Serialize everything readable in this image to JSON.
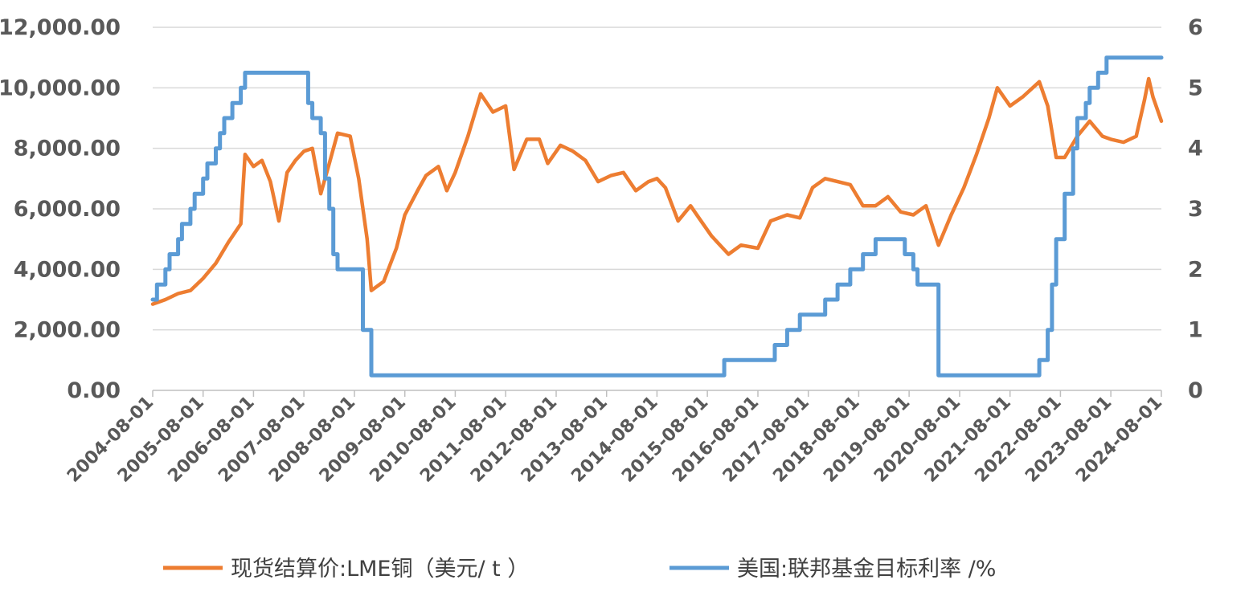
{
  "chart_data": {
    "type": "line",
    "title": "",
    "xlabel": "",
    "ylabel": "",
    "y_left_lim": [
      0,
      12000
    ],
    "y_right_lim": [
      0,
      6
    ],
    "y_left_ticks": [
      "0.00",
      "2,000.00",
      "4,000.00",
      "6,000.00",
      "8,000.00",
      "10,000.00",
      "12,000.00"
    ],
    "y_right_ticks": [
      "0",
      "1",
      "2",
      "3",
      "4",
      "5",
      "6"
    ],
    "x_ticks": [
      "2004-08-01",
      "2005-08-01",
      "2006-08-01",
      "2007-08-01",
      "2008-08-01",
      "2009-08-01",
      "2010-08-01",
      "2011-08-01",
      "2012-08-01",
      "2013-08-01",
      "2014-08-01",
      "2015-08-01",
      "2016-08-01",
      "2017-08-01",
      "2018-08-01",
      "2019-08-01",
      "2020-08-01",
      "2021-08-01",
      "2022-08-01",
      "2023-08-01",
      "2024-08-01"
    ],
    "x_range": [
      "2004-08-01",
      "2024-08-01"
    ],
    "grid": true,
    "legend_position": "bottom",
    "series": [
      {
        "name": "现货结算价:LME铜（美元/ t ）",
        "axis": "left",
        "color": "#ED7D31",
        "points": [
          [
            "2004-08-01",
            2850
          ],
          [
            "2004-11-01",
            3000
          ],
          [
            "2005-02-01",
            3200
          ],
          [
            "2005-05-01",
            3300
          ],
          [
            "2005-08-01",
            3700
          ],
          [
            "2005-11-01",
            4200
          ],
          [
            "2006-02-01",
            4900
          ],
          [
            "2006-05-01",
            5500
          ],
          [
            "2006-06-01",
            7800
          ],
          [
            "2006-08-01",
            7400
          ],
          [
            "2006-10-01",
            7600
          ],
          [
            "2006-12-01",
            6900
          ],
          [
            "2007-02-01",
            5600
          ],
          [
            "2007-04-01",
            7200
          ],
          [
            "2007-06-01",
            7600
          ],
          [
            "2007-08-01",
            7900
          ],
          [
            "2007-10-01",
            8000
          ],
          [
            "2007-12-01",
            6500
          ],
          [
            "2008-02-01",
            7500
          ],
          [
            "2008-04-01",
            8500
          ],
          [
            "2008-07-01",
            8400
          ],
          [
            "2008-09-01",
            7000
          ],
          [
            "2008-11-01",
            5000
          ],
          [
            "2008-12-01",
            3300
          ],
          [
            "2009-03-01",
            3600
          ],
          [
            "2009-06-01",
            4700
          ],
          [
            "2009-08-01",
            5800
          ],
          [
            "2009-11-01",
            6600
          ],
          [
            "2010-01-01",
            7100
          ],
          [
            "2010-04-01",
            7400
          ],
          [
            "2010-06-01",
            6600
          ],
          [
            "2010-08-01",
            7200
          ],
          [
            "2010-11-01",
            8400
          ],
          [
            "2011-02-01",
            9800
          ],
          [
            "2011-05-01",
            9200
          ],
          [
            "2011-08-01",
            9400
          ],
          [
            "2011-10-01",
            7300
          ],
          [
            "2012-01-01",
            8300
          ],
          [
            "2012-04-01",
            8300
          ],
          [
            "2012-06-01",
            7500
          ],
          [
            "2012-09-01",
            8100
          ],
          [
            "2012-12-01",
            7900
          ],
          [
            "2013-03-01",
            7600
          ],
          [
            "2013-06-01",
            6900
          ],
          [
            "2013-09-01",
            7100
          ],
          [
            "2013-12-01",
            7200
          ],
          [
            "2014-03-01",
            6600
          ],
          [
            "2014-06-01",
            6900
          ],
          [
            "2014-08-01",
            7000
          ],
          [
            "2014-10-01",
            6700
          ],
          [
            "2015-01-01",
            5600
          ],
          [
            "2015-04-01",
            6100
          ],
          [
            "2015-06-01",
            5700
          ],
          [
            "2015-09-01",
            5100
          ],
          [
            "2016-01-01",
            4500
          ],
          [
            "2016-04-01",
            4800
          ],
          [
            "2016-08-01",
            4700
          ],
          [
            "2016-11-01",
            5600
          ],
          [
            "2017-03-01",
            5800
          ],
          [
            "2017-06-01",
            5700
          ],
          [
            "2017-09-01",
            6700
          ],
          [
            "2017-12-01",
            7000
          ],
          [
            "2018-03-01",
            6900
          ],
          [
            "2018-06-01",
            6800
          ],
          [
            "2018-09-01",
            6100
          ],
          [
            "2018-12-01",
            6100
          ],
          [
            "2019-03-01",
            6400
          ],
          [
            "2019-06-01",
            5900
          ],
          [
            "2019-09-01",
            5800
          ],
          [
            "2019-12-01",
            6100
          ],
          [
            "2020-03-01",
            4800
          ],
          [
            "2020-06-01",
            5800
          ],
          [
            "2020-09-01",
            6700
          ],
          [
            "2020-12-01",
            7800
          ],
          [
            "2021-03-01",
            9000
          ],
          [
            "2021-05-01",
            10000
          ],
          [
            "2021-08-01",
            9400
          ],
          [
            "2021-11-01",
            9700
          ],
          [
            "2022-03-01",
            10200
          ],
          [
            "2022-05-01",
            9400
          ],
          [
            "2022-07-01",
            7700
          ],
          [
            "2022-09-01",
            7700
          ],
          [
            "2022-12-01",
            8400
          ],
          [
            "2023-03-01",
            8900
          ],
          [
            "2023-06-01",
            8400
          ],
          [
            "2023-08-01",
            8300
          ],
          [
            "2023-11-01",
            8200
          ],
          [
            "2024-02-01",
            8400
          ],
          [
            "2024-04-01",
            9600
          ],
          [
            "2024-05-01",
            10300
          ],
          [
            "2024-06-01",
            9700
          ],
          [
            "2024-08-01",
            8900
          ]
        ]
      },
      {
        "name": "美国:联邦基金目标利率 /%",
        "axis": "right",
        "color": "#5B9BD5",
        "step": true,
        "points": [
          [
            "2004-08-01",
            1.5
          ],
          [
            "2004-09-01",
            1.75
          ],
          [
            "2004-11-01",
            2.0
          ],
          [
            "2004-12-01",
            2.25
          ],
          [
            "2005-02-01",
            2.5
          ],
          [
            "2005-03-01",
            2.75
          ],
          [
            "2005-05-01",
            3.0
          ],
          [
            "2005-06-01",
            3.25
          ],
          [
            "2005-08-01",
            3.5
          ],
          [
            "2005-09-01",
            3.75
          ],
          [
            "2005-11-01",
            4.0
          ],
          [
            "2005-12-01",
            4.25
          ],
          [
            "2006-01-01",
            4.5
          ],
          [
            "2006-03-01",
            4.75
          ],
          [
            "2006-05-01",
            5.0
          ],
          [
            "2006-06-01",
            5.25
          ],
          [
            "2007-09-01",
            4.75
          ],
          [
            "2007-10-01",
            4.5
          ],
          [
            "2007-12-01",
            4.25
          ],
          [
            "2008-01-01",
            3.5
          ],
          [
            "2008-02-01",
            3.0
          ],
          [
            "2008-03-01",
            2.25
          ],
          [
            "2008-04-01",
            2.0
          ],
          [
            "2008-10-01",
            1.0
          ],
          [
            "2008-12-01",
            0.25
          ],
          [
            "2015-12-01",
            0.5
          ],
          [
            "2016-12-01",
            0.75
          ],
          [
            "2017-03-01",
            1.0
          ],
          [
            "2017-06-01",
            1.25
          ],
          [
            "2017-12-01",
            1.5
          ],
          [
            "2018-03-01",
            1.75
          ],
          [
            "2018-06-01",
            2.0
          ],
          [
            "2018-09-01",
            2.25
          ],
          [
            "2018-12-01",
            2.5
          ],
          [
            "2019-07-01",
            2.25
          ],
          [
            "2019-09-01",
            2.0
          ],
          [
            "2019-10-01",
            1.75
          ],
          [
            "2020-03-01",
            0.25
          ],
          [
            "2022-03-01",
            0.5
          ],
          [
            "2022-05-01",
            1.0
          ],
          [
            "2022-06-01",
            1.75
          ],
          [
            "2022-07-01",
            2.5
          ],
          [
            "2022-09-01",
            3.25
          ],
          [
            "2022-11-01",
            4.0
          ],
          [
            "2022-12-01",
            4.5
          ],
          [
            "2023-02-01",
            4.75
          ],
          [
            "2023-03-01",
            5.0
          ],
          [
            "2023-05-01",
            5.25
          ],
          [
            "2023-07-01",
            5.5
          ],
          [
            "2024-08-01",
            5.5
          ]
        ]
      }
    ]
  }
}
